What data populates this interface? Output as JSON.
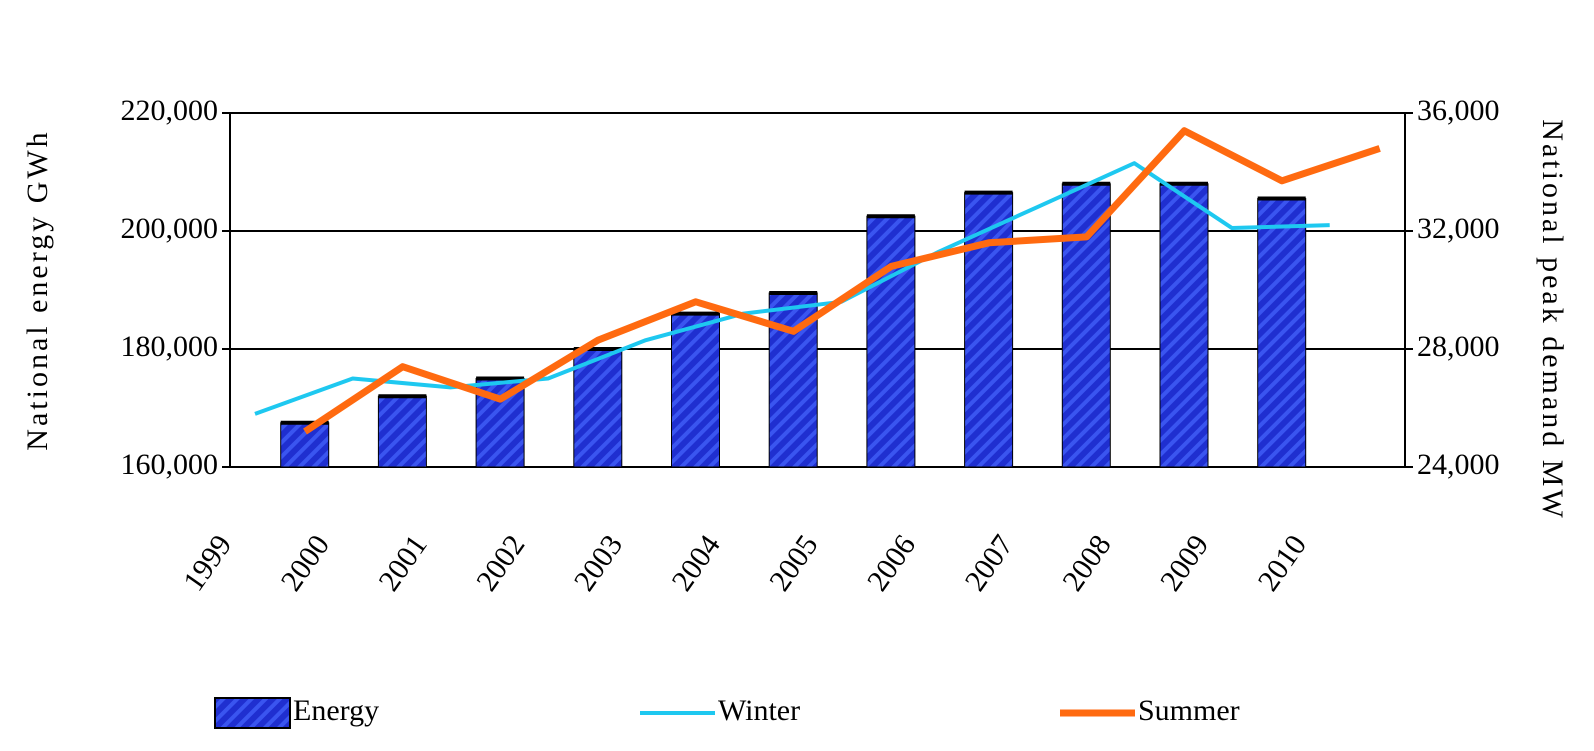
{
  "chart_data": {
    "type": "bar_line",
    "y_label": "National energy GWh",
    "y2_label": "National peak demand MW",
    "categories": [
      "1999",
      "2000",
      "2001",
      "2002",
      "2003",
      "2004",
      "2005",
      "2006",
      "2007",
      "2008",
      "2009",
      "2010"
    ],
    "series": [
      {
        "name": "Energy",
        "type": "bar",
        "color": "#1f2fd0",
        "values": [
          null,
          167500,
          172000,
          175000,
          180000,
          186000,
          189500,
          202500,
          206500,
          208000,
          208000,
          205500
        ]
      },
      {
        "name": "Winter",
        "type": "line",
        "axis": "y2",
        "color": "#1ec8f0",
        "values": [
          25800,
          27000,
          26700,
          27000,
          28300,
          29200,
          29600,
          31300,
          32800,
          34300,
          32100,
          32200
        ]
      },
      {
        "name": "Summer",
        "type": "line",
        "axis": "y2",
        "color": "#ff6a10",
        "values": [
          25200,
          27400,
          26300,
          28300,
          29600,
          28600,
          30800,
          31600,
          31800,
          35400,
          33700,
          34800
        ]
      }
    ],
    "ylim": [
      160000,
      220000
    ],
    "yticks": [
      {
        "value": 160000,
        "label": "160,000"
      },
      {
        "value": 180000,
        "label": "180,000"
      },
      {
        "value": 200000,
        "label": "200,000"
      },
      {
        "value": 220000,
        "label": "220,000"
      }
    ],
    "y2lim": [
      24000,
      36000
    ],
    "y2ticks": [
      {
        "value": 24000,
        "label": "24,000"
      },
      {
        "value": 28000,
        "label": "28,000"
      },
      {
        "value": 32000,
        "label": "32,000"
      },
      {
        "value": 36000,
        "label": "36,000"
      }
    ],
    "grid": true,
    "legend": "bottom"
  }
}
